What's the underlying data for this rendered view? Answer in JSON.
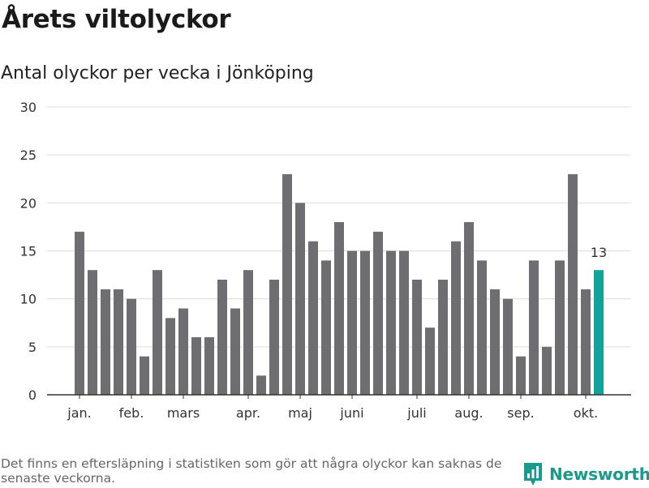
{
  "title": "Årets viltolyckor",
  "subtitle": "Antal olyckor per vecka i Jönköping",
  "footnote": "Det finns en eftersläpning i statistiken som gör att några olyckor kan saknas de senaste veckorna.",
  "brand": {
    "name": "Newsworthy",
    "icon": "newsworthy-logo-icon",
    "color": "#1a9a8c"
  },
  "colors": {
    "bar": "#6e6d71",
    "highlight": "#10a39b",
    "grid": "#dddddd",
    "axis": "#333333"
  },
  "chart_data": {
    "type": "bar",
    "title": "Årets viltolyckor",
    "subtitle": "Antal olyckor per vecka i Jönköping",
    "xlabel": "",
    "ylabel": "",
    "ylim": [
      0,
      30
    ],
    "yticks": [
      0,
      5,
      10,
      15,
      20,
      25,
      30
    ],
    "grid": true,
    "weeks": [
      1,
      2,
      3,
      4,
      5,
      6,
      7,
      8,
      9,
      10,
      11,
      12,
      13,
      14,
      15,
      16,
      17,
      18,
      19,
      20,
      21,
      22,
      23,
      24,
      25,
      26,
      27,
      28,
      29,
      30,
      31,
      32,
      33,
      34,
      35,
      36,
      37,
      38,
      39,
      40,
      41
    ],
    "values": [
      17,
      13,
      11,
      11,
      10,
      4,
      13,
      8,
      9,
      6,
      6,
      12,
      9,
      13,
      2,
      12,
      23,
      20,
      16,
      14,
      18,
      15,
      15,
      17,
      15,
      15,
      12,
      7,
      12,
      16,
      18,
      14,
      11,
      10,
      4,
      14,
      5,
      14,
      23,
      11,
      13
    ],
    "highlight_index": 40,
    "highlight_label": "13",
    "month_labels": [
      {
        "label": "jan.",
        "week": 1
      },
      {
        "label": "feb.",
        "week": 5
      },
      {
        "label": "mars",
        "week": 9
      },
      {
        "label": "apr.",
        "week": 14
      },
      {
        "label": "maj",
        "week": 18
      },
      {
        "label": "juni",
        "week": 22
      },
      {
        "label": "juli",
        "week": 27
      },
      {
        "label": "aug.",
        "week": 31
      },
      {
        "label": "sep.",
        "week": 35
      },
      {
        "label": "okt.",
        "week": 40
      }
    ]
  }
}
